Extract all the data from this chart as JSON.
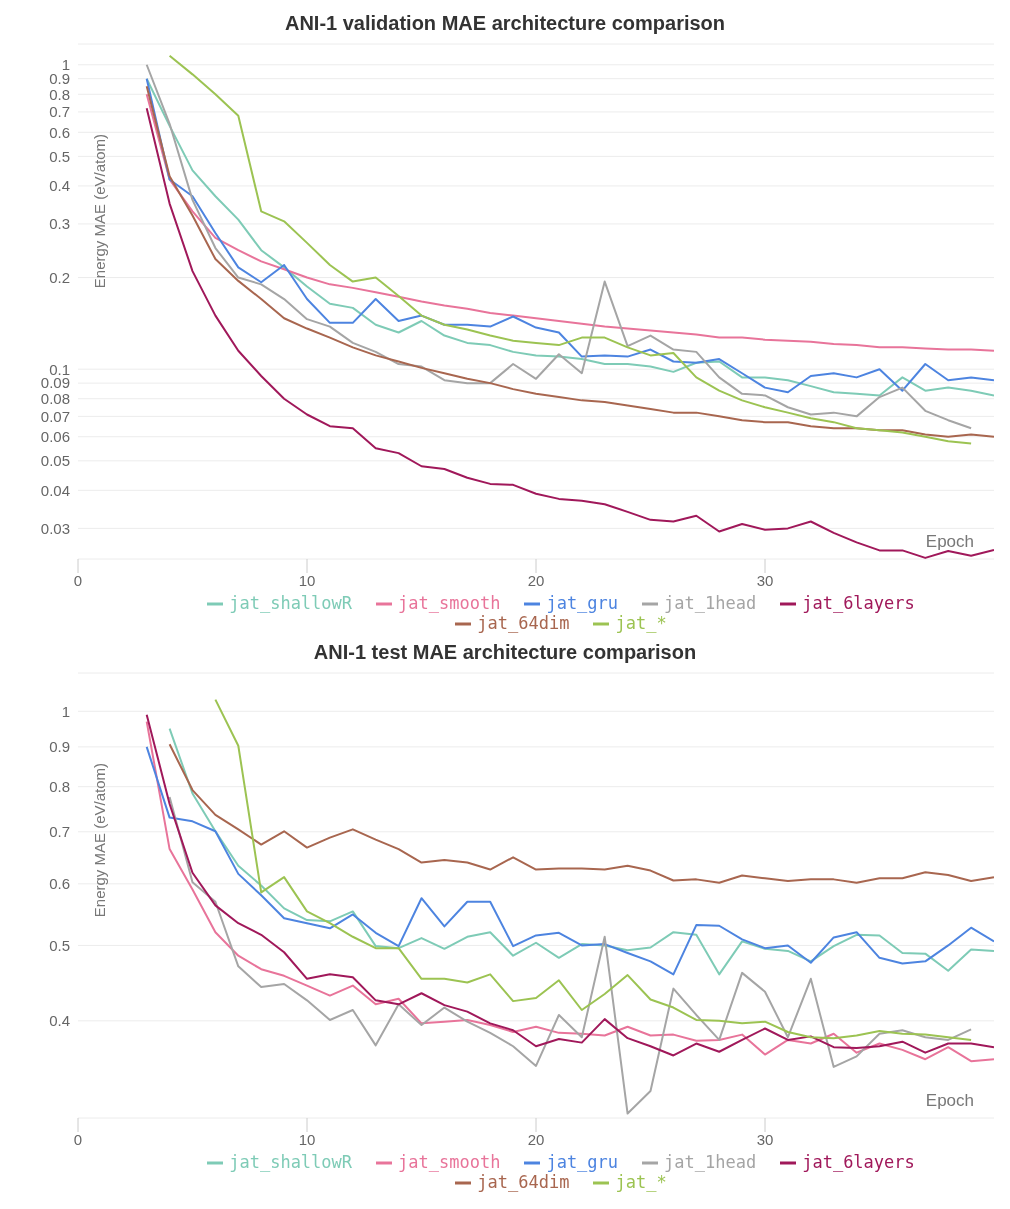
{
  "chart_data": [
    {
      "type": "line",
      "title": "ANI-1 validation MAE architecture comparison",
      "xlabel": "Epoch",
      "ylabel": "Energy MAE (eV/atom)",
      "log": true,
      "grid": "y",
      "legend": "bottom",
      "marker": "none",
      "line_style": "solid",
      "xlim": [
        0,
        40
      ],
      "xticks": [
        0,
        10,
        20,
        30
      ],
      "ylim": [
        0.0238,
        1.17
      ],
      "yticks": [
        0.03,
        0.04,
        0.05,
        0.06,
        0.07,
        0.08,
        0.09,
        0.1,
        0.2,
        0.3,
        0.4,
        0.5,
        0.6,
        0.7,
        0.8,
        0.9,
        1
      ],
      "x": [
        3,
        4,
        5,
        6,
        7,
        8,
        9,
        10,
        11,
        12,
        13,
        14,
        15,
        16,
        17,
        18,
        19,
        20,
        21,
        22,
        23,
        24,
        25,
        26,
        27,
        28,
        29,
        30,
        31,
        32,
        33,
        34,
        35,
        36,
        37,
        38,
        39,
        40
      ],
      "series": [
        {
          "name": "jat_shallowR",
          "color": "#7ecbb6",
          "values": [
            0.9,
            0.63,
            0.45,
            0.37,
            0.31,
            0.246,
            0.216,
            0.187,
            0.164,
            0.159,
            0.14,
            0.132,
            0.144,
            0.129,
            0.122,
            0.12,
            0.114,
            0.111,
            0.11,
            0.108,
            0.104,
            0.104,
            0.102,
            0.098,
            0.105,
            0.106,
            0.094,
            0.094,
            0.092,
            0.088,
            0.084,
            0.083,
            0.082,
            0.094,
            0.085,
            0.087,
            0.085,
            0.082
          ]
        },
        {
          "name": "jat_smooth",
          "color": "#e8749a",
          "values": [
            0.8,
            0.42,
            0.33,
            0.27,
            0.246,
            0.226,
            0.213,
            0.2,
            0.19,
            0.185,
            0.179,
            0.173,
            0.167,
            0.162,
            0.158,
            0.153,
            0.15,
            0.147,
            0.144,
            0.141,
            0.138,
            0.136,
            0.134,
            0.132,
            0.13,
            0.127,
            0.127,
            0.125,
            0.124,
            0.123,
            0.121,
            0.12,
            0.118,
            0.118,
            0.117,
            0.116,
            0.116,
            0.115
          ]
        },
        {
          "name": "jat_gru",
          "color": "#4d84e0",
          "values": [
            0.9,
            0.42,
            0.37,
            0.28,
            0.216,
            0.193,
            0.22,
            0.17,
            0.142,
            0.142,
            0.17,
            0.144,
            0.15,
            0.14,
            0.14,
            0.138,
            0.149,
            0.137,
            0.132,
            0.11,
            0.111,
            0.11,
            0.116,
            0.106,
            0.105,
            0.108,
            0.097,
            0.087,
            0.084,
            0.095,
            0.097,
            0.094,
            0.1,
            0.085,
            0.104,
            0.092,
            0.094,
            0.092
          ]
        },
        {
          "name": "jat_1head",
          "color": "#a5a5a5",
          "values": [
            1.0,
            0.64,
            0.36,
            0.25,
            0.2,
            0.19,
            0.17,
            0.146,
            0.138,
            0.122,
            0.114,
            0.104,
            0.102,
            0.092,
            0.09,
            0.09,
            0.104,
            0.093,
            0.112,
            0.097,
            0.194,
            0.119,
            0.129,
            0.116,
            0.114,
            0.094,
            0.083,
            0.082,
            0.075,
            0.071,
            0.072,
            0.07,
            0.081,
            0.087,
            0.073,
            0.068,
            0.064,
            null
          ]
        },
        {
          "name": "jat_6layers",
          "color": "#a0185a",
          "values": [
            0.72,
            0.35,
            0.21,
            0.15,
            0.115,
            0.095,
            0.08,
            0.071,
            0.065,
            0.064,
            0.055,
            0.053,
            0.048,
            0.047,
            0.044,
            0.042,
            0.0417,
            0.039,
            0.0375,
            0.037,
            0.036,
            0.034,
            0.032,
            0.0316,
            0.033,
            0.0293,
            0.031,
            0.0297,
            0.03,
            0.0316,
            0.029,
            0.027,
            0.0254,
            0.0254,
            0.024,
            0.0253,
            0.0244,
            0.0255
          ]
        },
        {
          "name": "jat_64dim",
          "color": "#a8664f",
          "values": [
            0.85,
            0.43,
            0.32,
            0.23,
            0.195,
            0.17,
            0.147,
            0.136,
            0.127,
            0.118,
            0.111,
            0.106,
            0.101,
            0.097,
            0.093,
            0.09,
            0.086,
            0.083,
            0.081,
            0.079,
            0.078,
            0.076,
            0.074,
            0.072,
            0.072,
            0.07,
            0.068,
            0.067,
            0.067,
            0.065,
            0.064,
            0.064,
            0.063,
            0.063,
            0.061,
            0.06,
            0.061,
            0.06
          ]
        },
        {
          "name": "jat_*",
          "color": "#9cc352",
          "values": [
            null,
            1.07,
            0.93,
            0.8,
            0.68,
            0.33,
            0.306,
            0.26,
            0.22,
            0.194,
            0.2,
            0.174,
            0.15,
            0.14,
            0.135,
            0.129,
            0.124,
            0.122,
            0.12,
            0.127,
            0.127,
            0.118,
            0.111,
            0.113,
            0.094,
            0.085,
            0.079,
            0.075,
            0.072,
            0.069,
            0.067,
            0.064,
            0.063,
            0.062,
            0.06,
            0.058,
            0.057,
            null
          ]
        }
      ]
    },
    {
      "type": "line",
      "title": "ANI-1 test MAE architecture comparison",
      "xlabel": "Epoch",
      "ylabel": "Energy MAE (eV/atom)",
      "log": true,
      "grid": "y",
      "legend": "bottom",
      "marker": "none",
      "line_style": "solid",
      "xlim": [
        0,
        40
      ],
      "xticks": [
        0,
        10,
        20,
        30
      ],
      "ylim": [
        0.3,
        1.12
      ],
      "yticks": [
        0.4,
        0.5,
        0.6,
        0.7,
        0.8,
        0.9,
        1
      ],
      "x": [
        3,
        4,
        5,
        6,
        7,
        8,
        9,
        10,
        11,
        12,
        13,
        14,
        15,
        16,
        17,
        18,
        19,
        20,
        21,
        22,
        23,
        24,
        25,
        26,
        27,
        28,
        29,
        30,
        31,
        32,
        33,
        34,
        35,
        36,
        37,
        38,
        39,
        40
      ],
      "series": [
        {
          "name": "jat_shallowR",
          "color": "#7ecbb6",
          "values": [
            null,
            0.95,
            0.784,
            0.701,
            0.633,
            0.597,
            0.558,
            0.539,
            0.537,
            0.553,
            0.499,
            0.496,
            0.511,
            0.495,
            0.513,
            0.52,
            0.485,
            0.504,
            0.482,
            0.502,
            0.5,
            0.493,
            0.497,
            0.52,
            0.516,
            0.459,
            0.506,
            0.495,
            0.492,
            0.477,
            0.499,
            0.516,
            0.515,
            0.489,
            0.488,
            0.464,
            0.494,
            0.492
          ]
        },
        {
          "name": "jat_smooth",
          "color": "#e8749a",
          "values": [
            0.97,
            0.665,
            0.59,
            0.52,
            0.485,
            0.466,
            0.457,
            0.444,
            0.431,
            0.444,
            0.42,
            0.427,
            0.397,
            0.399,
            0.401,
            0.395,
            0.387,
            0.393,
            0.386,
            0.385,
            0.383,
            0.393,
            0.383,
            0.384,
            0.377,
            0.378,
            0.384,
            0.362,
            0.378,
            0.374,
            0.385,
            0.364,
            0.374,
            0.367,
            0.357,
            0.37,
            0.355,
            0.357
          ]
        },
        {
          "name": "jat_gru",
          "color": "#4d84e0",
          "values": [
            0.9,
            0.73,
            0.722,
            0.701,
            0.618,
            0.58,
            0.542,
            0.534,
            0.526,
            0.548,
            0.519,
            0.499,
            0.575,
            0.529,
            0.569,
            0.569,
            0.499,
            0.515,
            0.519,
            0.5,
            0.502,
            0.489,
            0.477,
            0.459,
            0.531,
            0.53,
            0.509,
            0.496,
            0.5,
            0.475,
            0.512,
            0.52,
            0.482,
            0.474,
            0.477,
            0.5,
            0.527,
            0.506
          ]
        },
        {
          "name": "jat_1head",
          "color": "#a5a5a5",
          "values": [
            null,
            0.776,
            0.603,
            0.569,
            0.47,
            0.442,
            0.446,
            0.425,
            0.401,
            0.413,
            0.372,
            0.42,
            0.395,
            0.416,
            0.399,
            0.386,
            0.371,
            0.35,
            0.407,
            0.381,
            0.513,
            0.304,
            0.325,
            0.44,
            0.407,
            0.378,
            0.461,
            0.436,
            0.381,
            0.453,
            0.349,
            0.36,
            0.385,
            0.389,
            0.381,
            0.378,
            0.39,
            null
          ]
        },
        {
          "name": "jat_6layers",
          "color": "#a0185a",
          "values": [
            0.99,
            0.76,
            0.62,
            0.563,
            0.534,
            0.516,
            0.49,
            0.453,
            0.459,
            0.455,
            0.425,
            0.42,
            0.434,
            0.419,
            0.411,
            0.397,
            0.389,
            0.371,
            0.379,
            0.375,
            0.402,
            0.38,
            0.371,
            0.361,
            0.374,
            0.365,
            0.378,
            0.391,
            0.378,
            0.382,
            0.37,
            0.369,
            0.371,
            0.376,
            0.364,
            0.374,
            0.374,
            0.37
          ]
        },
        {
          "name": "jat_64dim",
          "color": "#a8664f",
          "values": [
            null,
            0.907,
            0.792,
            0.736,
            0.705,
            0.674,
            0.701,
            0.668,
            0.688,
            0.705,
            0.684,
            0.665,
            0.639,
            0.644,
            0.639,
            0.626,
            0.649,
            0.626,
            0.628,
            0.628,
            0.626,
            0.633,
            0.624,
            0.606,
            0.608,
            0.602,
            0.615,
            0.61,
            0.605,
            0.608,
            0.608,
            0.602,
            0.61,
            0.61,
            0.621,
            0.616,
            0.605,
            0.612
          ]
        },
        {
          "name": "jat_*",
          "color": "#9cc352",
          "values": [
            null,
            null,
            null,
            1.035,
            0.903,
            0.585,
            0.612,
            0.553,
            0.534,
            0.513,
            0.496,
            0.496,
            0.453,
            0.453,
            0.448,
            0.459,
            0.424,
            0.428,
            0.451,
            0.413,
            0.433,
            0.458,
            0.426,
            0.416,
            0.401,
            0.4,
            0.397,
            0.399,
            0.387,
            0.381,
            0.38,
            0.383,
            0.388,
            0.385,
            0.384,
            0.381,
            0.378,
            null
          ]
        }
      ]
    }
  ]
}
